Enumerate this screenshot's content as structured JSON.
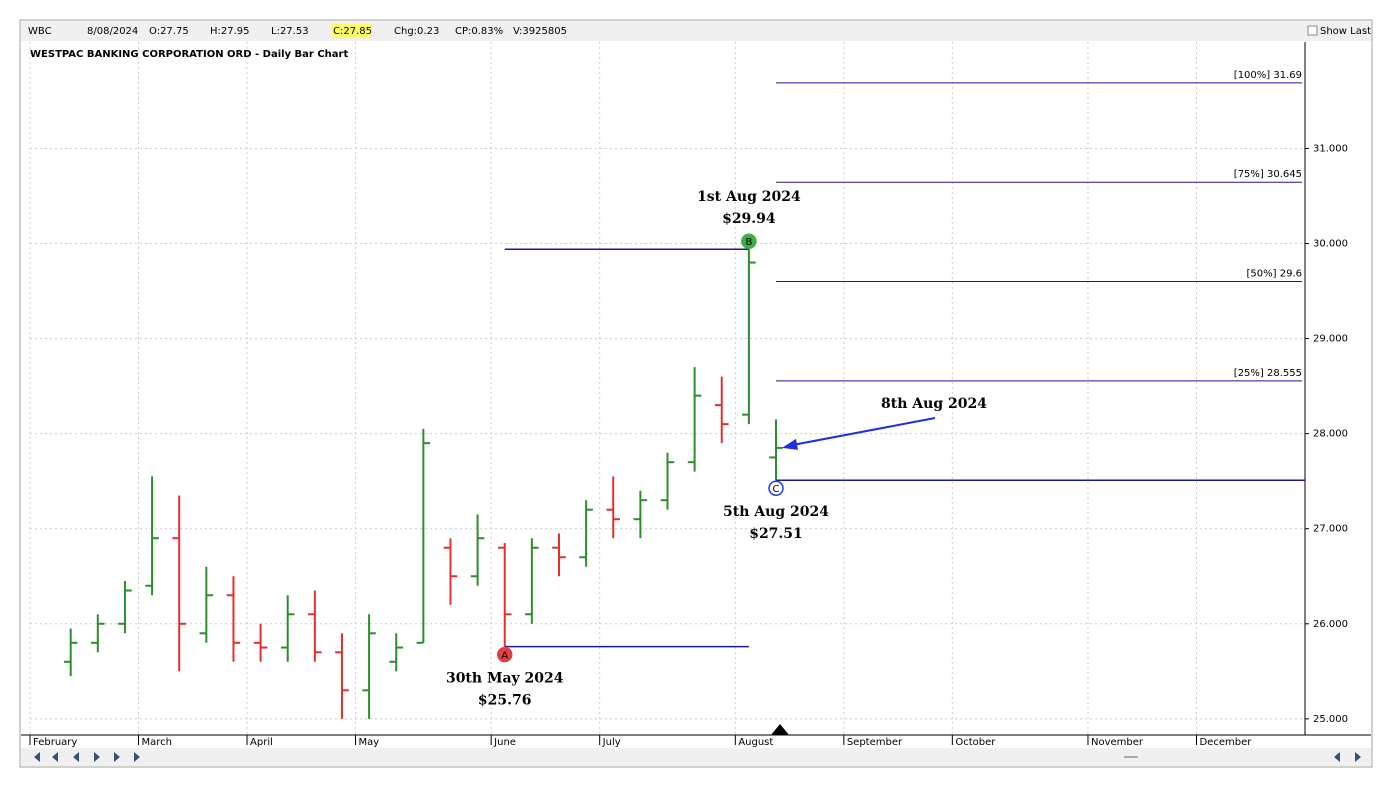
{
  "header": {
    "symbol": "WBC",
    "date": "8/08/2024",
    "open": "O:27.75",
    "high": "H:27.95",
    "low": "L:27.53",
    "close": "C:27.85",
    "change": "Chg:0.23",
    "change_percent": "CP:0.83%",
    "volume": "V:3925805",
    "show_last": "Show Last"
  },
  "chart_data": {
    "type": "ohlc",
    "title": "WESTPAC BANKING CORPORATION ORD - Daily Bar Chart",
    "categories": [
      "February",
      null,
      null,
      null,
      "March",
      null,
      null,
      null,
      "April",
      null,
      null,
      null,
      "May",
      null,
      null,
      null,
      null,
      "June",
      null,
      null,
      null,
      "July",
      null,
      null,
      null,
      null,
      "August",
      null,
      null,
      null,
      "September",
      null,
      null,
      null,
      "October",
      null,
      null,
      null,
      null,
      "November",
      null,
      null,
      null,
      "December",
      null,
      null,
      null
    ],
    "open": [
      null,
      25.6,
      25.8,
      26.0,
      26.4,
      26.9,
      25.9,
      26.3,
      25.8,
      25.75,
      26.1,
      25.7,
      25.3,
      25.6,
      25.8,
      26.8,
      26.5,
      26.8,
      26.1,
      26.8,
      26.7,
      27.2,
      27.1,
      27.3,
      27.7,
      28.3,
      28.2,
      27.75,
      null,
      null,
      null,
      null,
      null,
      null,
      null,
      null,
      null,
      null,
      null,
      null,
      null,
      null,
      null,
      null,
      null,
      null,
      null
    ],
    "high": [
      null,
      25.95,
      26.1,
      26.45,
      27.55,
      27.35,
      26.6,
      26.5,
      26.0,
      26.3,
      26.35,
      25.9,
      26.1,
      25.9,
      28.05,
      26.9,
      27.15,
      26.85,
      26.9,
      26.95,
      27.3,
      27.55,
      27.4,
      27.8,
      28.7,
      28.6,
      29.94,
      28.15,
      null,
      null,
      null,
      null,
      null,
      null,
      null,
      null,
      null,
      null,
      null,
      null,
      null,
      null,
      null,
      null,
      null,
      null,
      null
    ],
    "low": [
      null,
      25.45,
      25.7,
      25.9,
      26.3,
      25.5,
      25.8,
      25.6,
      25.6,
      25.6,
      25.6,
      25.0,
      25.0,
      25.5,
      25.8,
      26.2,
      26.4,
      25.76,
      26.0,
      26.5,
      26.6,
      26.9,
      26.9,
      27.2,
      27.6,
      27.9,
      28.1,
      27.51,
      null,
      null,
      null,
      null,
      null,
      null,
      null,
      null,
      null,
      null,
      null,
      null,
      null,
      null,
      null,
      null,
      null,
      null,
      null
    ],
    "close": [
      null,
      25.8,
      26.0,
      26.35,
      26.9,
      26.0,
      26.3,
      25.8,
      25.75,
      26.1,
      25.7,
      25.3,
      25.9,
      25.75,
      27.9,
      26.5,
      26.9,
      26.1,
      26.8,
      26.7,
      27.2,
      27.1,
      27.3,
      27.7,
      28.4,
      28.1,
      29.8,
      27.85,
      null,
      null,
      null,
      null,
      null,
      null,
      null,
      null,
      null,
      null,
      null,
      null,
      null,
      null,
      null,
      null,
      null,
      null,
      null
    ],
    "up_color": "#2e8b2e",
    "down_color": "#e03030",
    "line_color": "#1a1a8c",
    "annotation_color": "#7b2a8c",
    "ylim": [
      24.83,
      32.12
    ],
    "yticks": [
      {
        "value": 25,
        "label": "25.000"
      },
      {
        "value": 26,
        "label": "26.000"
      },
      {
        "value": 27,
        "label": "27.000"
      },
      {
        "value": 28,
        "label": "28.000"
      },
      {
        "value": 29,
        "label": "29.000"
      },
      {
        "value": 30,
        "label": "30.000"
      },
      {
        "value": 31,
        "label": "31.000"
      }
    ],
    "grid": true,
    "pivots": [
      {
        "marker": "A",
        "date": "30th May 2024",
        "price": 25.76,
        "price_label": "$25.76",
        "color": "#e04040"
      },
      {
        "marker": "B",
        "date": "1st Aug 2024",
        "price": 29.94,
        "price_label": "$29.94",
        "color": "#3cb043"
      },
      {
        "marker": "C",
        "date": "5th Aug 2024",
        "price": 27.51,
        "price_label": "$27.51",
        "color": "#2040e0"
      }
    ],
    "levels": [
      {
        "value": 31.69,
        "label": "[100%] 31.69"
      },
      {
        "value": 30.645,
        "label": "[75%] 30.645"
      },
      {
        "value": 29.6,
        "label": "[50%] 29.6"
      },
      {
        "value": 28.555,
        "label": "[25%] 28.555"
      }
    ],
    "last_bar_note": "8th Aug 2024"
  }
}
